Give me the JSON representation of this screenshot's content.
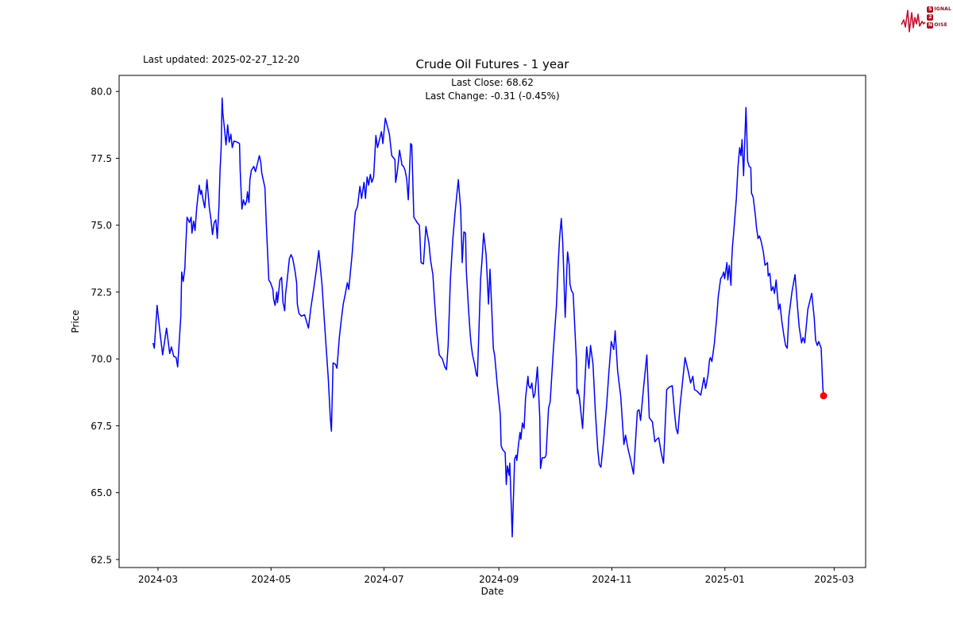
{
  "header": {
    "last_updated": "Last updated: 2025-02-27_12-20",
    "logo": {
      "word1_initial": "S",
      "word1_rest": "IGNAL",
      "word2": "2",
      "word3_initial": "N",
      "word3_rest": "OISE",
      "waveform_color": "#c41230"
    }
  },
  "chart_data": {
    "type": "line",
    "title": "Crude Oil Futures - 1 year",
    "subtitle_line1": "Last Close: 68.62",
    "subtitle_line2": "Last Change: -0.31 (-0.45%)",
    "xlabel": "Date",
    "ylabel": "Price",
    "last_close": 68.62,
    "last_change": -0.31,
    "last_change_pct": "-0.45%",
    "line_color": "#0000ff",
    "marker_color": "#ff0000",
    "grid": false,
    "legend": "none",
    "x_unit": "days since 2024-03-01",
    "xlim": [
      -21,
      382
    ],
    "ylim": [
      62.2,
      80.6
    ],
    "x_ticks": [
      {
        "t": 0,
        "label": "2024-03"
      },
      {
        "t": 61,
        "label": "2024-05"
      },
      {
        "t": 122,
        "label": "2024-07"
      },
      {
        "t": 184,
        "label": "2024-09"
      },
      {
        "t": 245,
        "label": "2024-11"
      },
      {
        "t": 306,
        "label": "2025-01"
      },
      {
        "t": 365,
        "label": "2025-03"
      }
    ],
    "y_ticks": [
      {
        "v": 62.5,
        "label": "62.5"
      },
      {
        "v": 65.0,
        "label": "65.0"
      },
      {
        "v": 67.5,
        "label": "67.5"
      },
      {
        "v": 70.0,
        "label": "70.0"
      },
      {
        "v": 72.5,
        "label": "72.5"
      },
      {
        "v": 75.0,
        "label": "75.0"
      },
      {
        "v": 77.5,
        "label": "77.5"
      },
      {
        "v": 80.0,
        "label": "80.0"
      }
    ],
    "points": [
      [
        -2.7,
        70.6
      ],
      [
        -2.0,
        70.4
      ],
      [
        -0.5,
        72.0
      ],
      [
        1.2,
        70.9
      ],
      [
        2.5,
        70.15
      ],
      [
        4.6,
        71.15
      ],
      [
        6.3,
        70.2
      ],
      [
        7.2,
        70.45
      ],
      [
        8.5,
        70.1
      ],
      [
        9.8,
        70.05
      ],
      [
        10.6,
        69.7
      ],
      [
        12.3,
        71.6
      ],
      [
        12.8,
        73.25
      ],
      [
        13.6,
        72.9
      ],
      [
        14.5,
        73.4
      ],
      [
        14.9,
        74.1
      ],
      [
        15.7,
        75.3
      ],
      [
        17.0,
        75.1
      ],
      [
        17.9,
        75.3
      ],
      [
        18.3,
        74.7
      ],
      [
        19.2,
        75.15
      ],
      [
        20.0,
        74.8
      ],
      [
        20.9,
        75.65
      ],
      [
        22.2,
        76.5
      ],
      [
        23.0,
        76.15
      ],
      [
        23.5,
        76.3
      ],
      [
        24.3,
        75.95
      ],
      [
        25.2,
        75.65
      ],
      [
        26.4,
        76.7
      ],
      [
        27.7,
        75.65
      ],
      [
        28.6,
        75.2
      ],
      [
        29.4,
        74.65
      ],
      [
        30.3,
        75.1
      ],
      [
        31.2,
        75.2
      ],
      [
        32.0,
        74.5
      ],
      [
        32.9,
        75.7
      ],
      [
        33.5,
        77.05
      ],
      [
        34.1,
        77.9
      ],
      [
        34.6,
        79.75
      ],
      [
        35.0,
        79.2
      ],
      [
        35.9,
        78.6
      ],
      [
        36.7,
        78.0
      ],
      [
        37.6,
        78.75
      ],
      [
        38.4,
        78.1
      ],
      [
        39.3,
        78.4
      ],
      [
        40.1,
        77.9
      ],
      [
        41.0,
        78.15
      ],
      [
        42.7,
        78.1
      ],
      [
        44.0,
        78.05
      ],
      [
        44.4,
        77.0
      ],
      [
        45.3,
        75.6
      ],
      [
        46.1,
        75.95
      ],
      [
        47.0,
        75.75
      ],
      [
        47.8,
        75.9
      ],
      [
        48.3,
        76.25
      ],
      [
        49.1,
        75.85
      ],
      [
        49.6,
        76.7
      ],
      [
        50.4,
        77.05
      ],
      [
        51.7,
        77.2
      ],
      [
        52.6,
        77.0
      ],
      [
        54.7,
        77.6
      ],
      [
        55.5,
        77.35
      ],
      [
        56.0,
        76.95
      ],
      [
        57.7,
        76.4
      ],
      [
        58.5,
        75.0
      ],
      [
        59.8,
        72.95
      ],
      [
        60.7,
        72.85
      ],
      [
        62.0,
        72.6
      ],
      [
        62.4,
        72.25
      ],
      [
        63.2,
        72.0
      ],
      [
        64.1,
        72.5
      ],
      [
        64.5,
        72.1
      ],
      [
        65.8,
        72.95
      ],
      [
        66.7,
        73.05
      ],
      [
        67.5,
        72.1
      ],
      [
        68.4,
        71.8
      ],
      [
        68.8,
        72.4
      ],
      [
        69.7,
        72.95
      ],
      [
        70.9,
        73.75
      ],
      [
        71.8,
        73.9
      ],
      [
        72.7,
        73.75
      ],
      [
        73.9,
        73.3
      ],
      [
        74.8,
        72.85
      ],
      [
        75.2,
        72.05
      ],
      [
        76.1,
        71.7
      ],
      [
        77.4,
        71.6
      ],
      [
        79.1,
        71.65
      ],
      [
        81.2,
        71.15
      ],
      [
        82.5,
        71.9
      ],
      [
        84.0,
        72.6
      ],
      [
        85.4,
        73.3
      ],
      [
        86.8,
        74.05
      ],
      [
        88.5,
        72.8
      ],
      [
        90.2,
        71.0
      ],
      [
        91.9,
        69.3
      ],
      [
        93.0,
        67.8
      ],
      [
        93.6,
        67.3
      ],
      [
        94.5,
        69.85
      ],
      [
        95.8,
        69.8
      ],
      [
        96.6,
        69.65
      ],
      [
        97.9,
        70.8
      ],
      [
        99.0,
        71.5
      ],
      [
        100.0,
        72.05
      ],
      [
        101.0,
        72.4
      ],
      [
        102.2,
        72.85
      ],
      [
        103.0,
        72.6
      ],
      [
        103.8,
        73.2
      ],
      [
        104.7,
        73.85
      ],
      [
        106.5,
        75.5
      ],
      [
        107.7,
        75.7
      ],
      [
        109.0,
        76.45
      ],
      [
        109.9,
        76.0
      ],
      [
        111.2,
        76.6
      ],
      [
        112.0,
        76.0
      ],
      [
        112.9,
        76.8
      ],
      [
        113.7,
        76.5
      ],
      [
        114.6,
        76.9
      ],
      [
        115.4,
        76.6
      ],
      [
        116.4,
        76.8
      ],
      [
        117.6,
        78.35
      ],
      [
        118.5,
        77.9
      ],
      [
        120.6,
        78.5
      ],
      [
        121.4,
        78.05
      ],
      [
        122.7,
        79.0
      ],
      [
        124.0,
        78.65
      ],
      [
        124.9,
        78.4
      ],
      [
        126.2,
        77.6
      ],
      [
        127.9,
        77.45
      ],
      [
        128.3,
        76.6
      ],
      [
        129.2,
        77.0
      ],
      [
        130.4,
        77.8
      ],
      [
        131.7,
        77.25
      ],
      [
        132.5,
        77.2
      ],
      [
        133.4,
        77.05
      ],
      [
        134.3,
        76.7
      ],
      [
        135.1,
        75.95
      ],
      [
        136.4,
        78.05
      ],
      [
        137.0,
        78.0
      ],
      [
        138.1,
        75.3
      ],
      [
        139.0,
        75.2
      ],
      [
        139.8,
        75.1
      ],
      [
        141.1,
        75.0
      ],
      [
        142.0,
        73.6
      ],
      [
        143.3,
        73.55
      ],
      [
        144.6,
        74.95
      ],
      [
        146.3,
        74.3
      ],
      [
        147.1,
        73.7
      ],
      [
        148.4,
        73.15
      ],
      [
        149.3,
        72.15
      ],
      [
        150.5,
        71.0
      ],
      [
        151.8,
        70.15
      ],
      [
        153.5,
        70.0
      ],
      [
        154.8,
        69.7
      ],
      [
        155.7,
        69.6
      ],
      [
        156.6,
        70.5
      ],
      [
        157.8,
        72.95
      ],
      [
        159.1,
        74.45
      ],
      [
        160.4,
        75.5
      ],
      [
        162.1,
        76.7
      ],
      [
        163.4,
        75.6
      ],
      [
        164.2,
        73.6
      ],
      [
        165.1,
        74.75
      ],
      [
        166.0,
        74.7
      ],
      [
        166.4,
        73.35
      ],
      [
        167.5,
        72.0
      ],
      [
        168.5,
        70.95
      ],
      [
        169.0,
        70.55
      ],
      [
        169.8,
        70.15
      ],
      [
        170.9,
        69.8
      ],
      [
        171.9,
        69.4
      ],
      [
        172.4,
        69.35
      ],
      [
        173.2,
        71.0
      ],
      [
        174.1,
        72.95
      ],
      [
        175.0,
        73.8
      ],
      [
        175.8,
        74.7
      ],
      [
        177.1,
        73.9
      ],
      [
        178.4,
        72.05
      ],
      [
        179.2,
        73.35
      ],
      [
        180.1,
        71.95
      ],
      [
        181.0,
        70.4
      ],
      [
        181.8,
        70.1
      ],
      [
        183.1,
        69.05
      ],
      [
        184.8,
        67.9
      ],
      [
        185.2,
        66.75
      ],
      [
        186.1,
        66.6
      ],
      [
        187.4,
        66.5
      ],
      [
        188.0,
        65.3
      ],
      [
        188.6,
        66.0
      ],
      [
        189.5,
        65.65
      ],
      [
        189.9,
        66.1
      ],
      [
        190.8,
        64.3
      ],
      [
        191.2,
        63.35
      ],
      [
        191.8,
        64.7
      ],
      [
        192.5,
        66.25
      ],
      [
        193.3,
        66.4
      ],
      [
        193.7,
        66.2
      ],
      [
        194.6,
        66.8
      ],
      [
        195.4,
        67.25
      ],
      [
        195.9,
        67.0
      ],
      [
        196.7,
        67.6
      ],
      [
        197.6,
        67.4
      ],
      [
        198.4,
        68.55
      ],
      [
        199.7,
        69.35
      ],
      [
        200.1,
        69.0
      ],
      [
        201.0,
        68.9
      ],
      [
        201.8,
        69.1
      ],
      [
        202.7,
        68.55
      ],
      [
        203.5,
        68.7
      ],
      [
        204.8,
        69.7
      ],
      [
        206.1,
        67.8
      ],
      [
        206.5,
        65.9
      ],
      [
        207.4,
        66.3
      ],
      [
        208.7,
        66.3
      ],
      [
        209.5,
        66.4
      ],
      [
        210.8,
        68.15
      ],
      [
        211.7,
        68.4
      ],
      [
        213.4,
        70.3
      ],
      [
        215.1,
        72.0
      ],
      [
        216.0,
        73.5
      ],
      [
        216.8,
        74.55
      ],
      [
        217.7,
        75.25
      ],
      [
        218.5,
        74.35
      ],
      [
        219.8,
        71.55
      ],
      [
        220.7,
        73.4
      ],
      [
        221.1,
        74.0
      ],
      [
        222.0,
        73.5
      ],
      [
        222.4,
        72.8
      ],
      [
        223.2,
        72.55
      ],
      [
        224.1,
        72.45
      ],
      [
        224.9,
        71.3
      ],
      [
        225.8,
        70.0
      ],
      [
        226.2,
        68.7
      ],
      [
        226.6,
        68.85
      ],
      [
        227.5,
        68.55
      ],
      [
        229.2,
        67.4
      ],
      [
        231.4,
        70.45
      ],
      [
        232.6,
        69.65
      ],
      [
        233.5,
        70.5
      ],
      [
        234.8,
        69.8
      ],
      [
        236.1,
        68.0
      ],
      [
        237.4,
        66.6
      ],
      [
        238.2,
        66.05
      ],
      [
        239.1,
        65.95
      ],
      [
        240.6,
        67.0
      ],
      [
        242.1,
        68.2
      ],
      [
        243.4,
        69.5
      ],
      [
        244.7,
        70.65
      ],
      [
        246.0,
        70.35
      ],
      [
        246.8,
        71.05
      ],
      [
        248.1,
        69.55
      ],
      [
        249.8,
        68.6
      ],
      [
        251.5,
        66.8
      ],
      [
        252.4,
        67.15
      ],
      [
        253.7,
        66.65
      ],
      [
        255.2,
        66.2
      ],
      [
        256.7,
        65.7
      ],
      [
        258.8,
        68.05
      ],
      [
        259.7,
        68.1
      ],
      [
        260.5,
        67.7
      ],
      [
        262.2,
        69.0
      ],
      [
        263.9,
        70.15
      ],
      [
        265.2,
        67.8
      ],
      [
        266.9,
        67.65
      ],
      [
        268.2,
        66.9
      ],
      [
        269.3,
        67.0
      ],
      [
        270.3,
        67.05
      ],
      [
        271.6,
        66.5
      ],
      [
        272.9,
        66.1
      ],
      [
        274.6,
        68.85
      ],
      [
        276.1,
        68.95
      ],
      [
        277.6,
        69.0
      ],
      [
        278.8,
        68.0
      ],
      [
        279.7,
        67.4
      ],
      [
        280.6,
        67.2
      ],
      [
        281.9,
        68.3
      ],
      [
        283.2,
        69.15
      ],
      [
        284.5,
        70.05
      ],
      [
        286.2,
        69.55
      ],
      [
        287.5,
        69.1
      ],
      [
        288.7,
        69.35
      ],
      [
        289.6,
        68.85
      ],
      [
        290.9,
        68.8
      ],
      [
        293.0,
        68.65
      ],
      [
        294.7,
        69.3
      ],
      [
        295.6,
        68.9
      ],
      [
        296.9,
        69.4
      ],
      [
        297.7,
        69.95
      ],
      [
        298.2,
        70.05
      ],
      [
        299.0,
        69.9
      ],
      [
        300.3,
        70.55
      ],
      [
        301.6,
        71.55
      ],
      [
        302.4,
        72.3
      ],
      [
        303.7,
        73.0
      ],
      [
        304.6,
        73.1
      ],
      [
        305.4,
        73.25
      ],
      [
        305.9,
        73.0
      ],
      [
        307.1,
        73.6
      ],
      [
        307.6,
        72.95
      ],
      [
        308.4,
        73.5
      ],
      [
        309.3,
        72.75
      ],
      [
        309.7,
        73.7
      ],
      [
        310.1,
        74.2
      ],
      [
        310.6,
        74.6
      ],
      [
        312.2,
        76.0
      ],
      [
        313.1,
        77.2
      ],
      [
        314.0,
        77.9
      ],
      [
        314.7,
        77.6
      ],
      [
        315.3,
        78.2
      ],
      [
        316.1,
        76.85
      ],
      [
        317.4,
        79.4
      ],
      [
        317.8,
        78.45
      ],
      [
        318.3,
        77.4
      ],
      [
        319.1,
        77.2
      ],
      [
        320.0,
        77.15
      ],
      [
        320.4,
        76.2
      ],
      [
        321.3,
        76.05
      ],
      [
        322.6,
        75.3
      ],
      [
        323.0,
        74.95
      ],
      [
        323.9,
        74.5
      ],
      [
        324.7,
        74.6
      ],
      [
        325.6,
        74.4
      ],
      [
        326.8,
        74.0
      ],
      [
        327.7,
        73.5
      ],
      [
        329.0,
        73.6
      ],
      [
        329.4,
        73.1
      ],
      [
        330.3,
        73.2
      ],
      [
        331.1,
        72.55
      ],
      [
        332.0,
        72.7
      ],
      [
        332.8,
        72.45
      ],
      [
        333.7,
        72.95
      ],
      [
        335.0,
        71.85
      ],
      [
        335.8,
        72.05
      ],
      [
        336.7,
        71.45
      ],
      [
        337.8,
        70.9
      ],
      [
        338.8,
        70.5
      ],
      [
        339.7,
        70.4
      ],
      [
        340.5,
        71.55
      ],
      [
        342.2,
        72.5
      ],
      [
        343.9,
        73.15
      ],
      [
        345.2,
        71.95
      ],
      [
        346.1,
        71.2
      ],
      [
        347.4,
        70.6
      ],
      [
        348.2,
        70.8
      ],
      [
        349.1,
        70.6
      ],
      [
        350.8,
        71.85
      ],
      [
        352.9,
        72.45
      ],
      [
        354.2,
        71.55
      ],
      [
        355.0,
        70.7
      ],
      [
        355.9,
        70.5
      ],
      [
        356.7,
        70.65
      ],
      [
        358.0,
        70.4
      ],
      [
        358.9,
        68.93
      ],
      [
        359.3,
        68.62
      ]
    ]
  }
}
